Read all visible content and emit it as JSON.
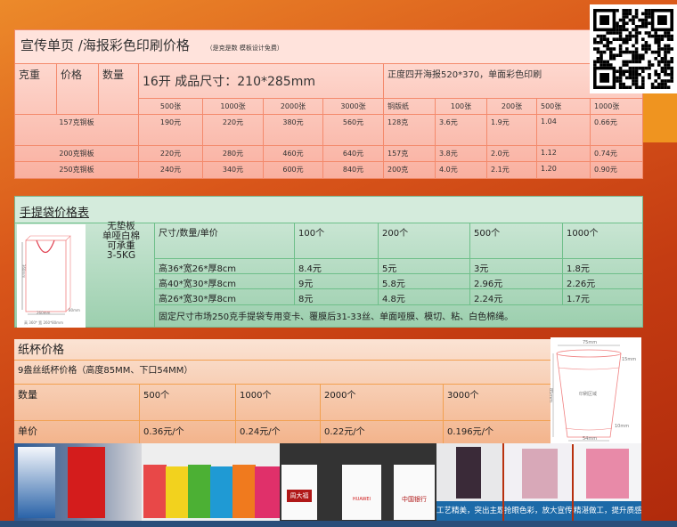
{
  "flyer": {
    "title": "宣传单页 /海报彩色印刷价格",
    "note": "（是克是数 模板设计免费）",
    "headers": {
      "weight": "克重",
      "price": "价格",
      "qty": "数量",
      "size16": "16开 成品尺寸：210*285mm",
      "poster": "正度四开海报520*370，单面彩色印刷"
    },
    "qty_cols": [
      "500张",
      "1000张",
      "2000张",
      "3000张"
    ],
    "poster_cols": [
      "铜版纸",
      "100张",
      "200张",
      "500张",
      "1000张"
    ],
    "rows": [
      {
        "paper": "157克铜板",
        "prices": [
          "190元",
          "220元",
          "380元",
          "560元"
        ],
        "poster": [
          "128克",
          "3.6元",
          "1.9元",
          "1.04",
          "0.66元"
        ]
      },
      {
        "paper": "200克铜板",
        "prices": [
          "220元",
          "280元",
          "460元",
          "640元"
        ],
        "poster": [
          "157克",
          "3.8元",
          "2.0元",
          "1.12",
          "0.74元"
        ]
      },
      {
        "paper": "250克铜板",
        "prices": [
          "240元",
          "340元",
          "600元",
          "840元"
        ],
        "poster": [
          "200克",
          "4.0元",
          "2.1元",
          "1.20",
          "0.90元"
        ]
      }
    ]
  },
  "bag": {
    "title": "手提袋价格表",
    "desc": [
      "无垫板",
      "单哑白棉",
      "可承重",
      "3-5KG"
    ],
    "diagram": {
      "width": "260mm",
      "height": "360mm",
      "depth": "80mm",
      "caption": "高 360* 宽 260*80mm"
    },
    "header": [
      "尺寸/数量/单价",
      "100个",
      "200个",
      "500个",
      "1000个"
    ],
    "rows": [
      [
        "高36*宽26*厚8cm",
        "8.4元",
        "5元",
        "3元",
        "1.8元"
      ],
      [
        "高40*宽30*厚8cm",
        "9元",
        "5.8元",
        "2.96元",
        "2.26元"
      ],
      [
        "高26*宽30*厚8cm",
        "8元",
        "4.8元",
        "2.24元",
        "1.7元"
      ]
    ],
    "footer": "固定尺寸市场250克手提袋专用变卡、覆膜后31-33丝、单面哑膜、模切、粘、白色棉绳。"
  },
  "cup": {
    "title": "纸杯价格",
    "subtitle": "9盎丝纸杯价格（高度85MM、下口54MM）",
    "qty_label": "数量",
    "qtys": [
      "500个",
      "1000个",
      "2000个",
      "3000个"
    ],
    "price_label": "单价",
    "prices": [
      "0.36元/个",
      "0.24元/个",
      "0.22元/个",
      "0.196元/个"
    ],
    "diagram": {
      "top": "75mm",
      "rim": "15mm",
      "height": "85mm",
      "area": "印刷区域",
      "bottom_band": "10mm",
      "bottom": "54mm"
    }
  },
  "photos": {
    "captions": [
      "工艺精美，突出主题",
      "抢眼色彩，放大宣传",
      "精湛做工，提升质感"
    ],
    "cup_brands": [
      "周大福",
      "HUAWEI",
      "中国银行"
    ]
  },
  "colors": {
    "flyer_border": "#f48a6c",
    "bag_border": "#6fbf8a",
    "cup_border": "#f2a050",
    "caption_bg": "#1c6aa8"
  }
}
